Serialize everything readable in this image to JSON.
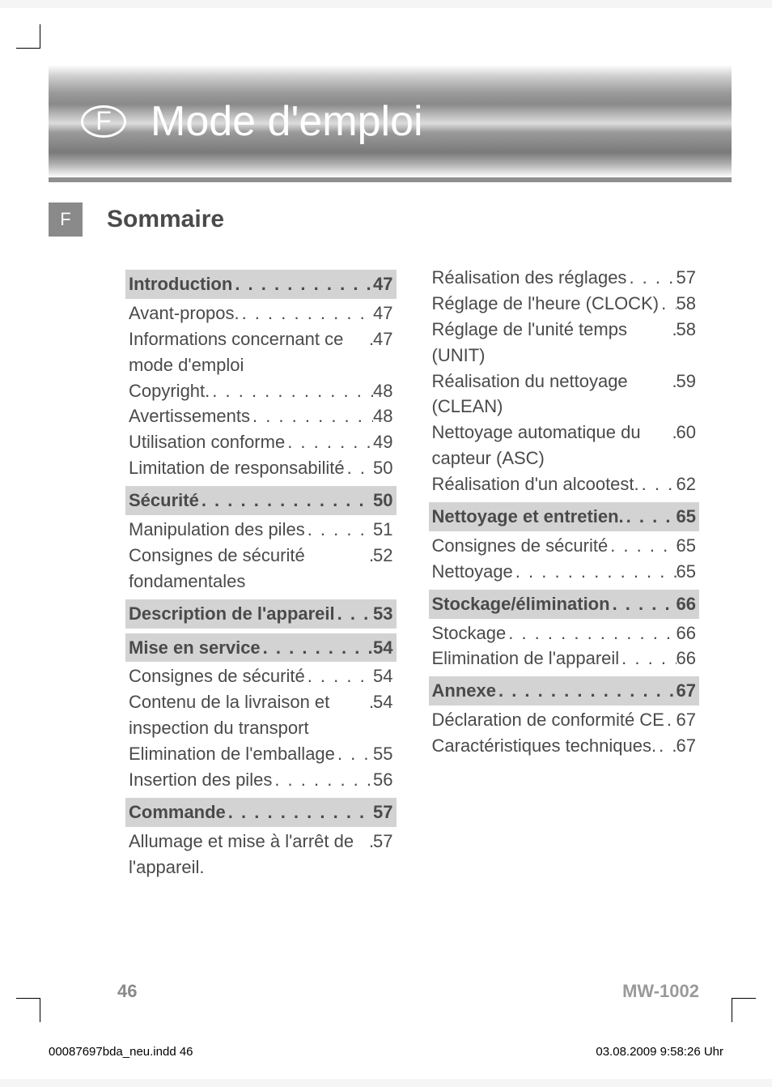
{
  "banner": {
    "lang_letter": "F",
    "title": "Mode d'emploi"
  },
  "section": {
    "lang_letter": "F",
    "title": "Sommaire"
  },
  "toc": {
    "col1": [
      {
        "label": "Introduction",
        "page": "47",
        "header": true
      },
      {
        "label": "Avant-propos.",
        "page": "47",
        "header": false
      },
      {
        "label": "Informations concernant ce mode d'emploi",
        "page": "47",
        "header": false
      },
      {
        "label": "Copyright.",
        "page": "48",
        "header": false
      },
      {
        "label": "Avertissements",
        "page": "48",
        "header": false
      },
      {
        "label": "Utilisation conforme",
        "page": "49",
        "header": false
      },
      {
        "label": "Limitation de responsabilité",
        "page": "50",
        "header": false
      },
      {
        "label": "Sécurité",
        "page": "50",
        "header": true
      },
      {
        "label": "Manipulation des piles",
        "page": "51",
        "header": false
      },
      {
        "label": "Consignes de sécurité fondamentales",
        "page": "52",
        "header": false
      },
      {
        "label": "Description de l'appareil",
        "page": "53",
        "header": true
      },
      {
        "label": "Mise en service",
        "page": "54",
        "header": true
      },
      {
        "label": "Consignes de sécurité",
        "page": "54",
        "header": false
      },
      {
        "label": "Contenu de la livraison et inspection du transport",
        "page": "54",
        "header": false
      },
      {
        "label": "Elimination de l'emballage",
        "page": "55",
        "header": false
      },
      {
        "label": "Insertion des piles",
        "page": "56",
        "header": false
      },
      {
        "label": "Commande",
        "page": "57",
        "header": true
      },
      {
        "label": "Allumage et mise à l'arrêt de l'appareil.",
        "page": "57",
        "header": false
      }
    ],
    "col2": [
      {
        "label": "Réalisation des réglages",
        "page": "57",
        "header": false
      },
      {
        "label": "Réglage de l'heure (CLOCK)",
        "page": "58",
        "header": false
      },
      {
        "label": "Réglage de l'unité temps (UNIT)",
        "page": "58",
        "header": false
      },
      {
        "label": "Réalisation du nettoyage (CLEAN)",
        "page": "59",
        "header": false
      },
      {
        "label": "Nettoyage automatique du capteur (ASC)",
        "page": "60",
        "header": false
      },
      {
        "label": "Réalisation d'un alcootest.",
        "page": "62",
        "header": false
      },
      {
        "label": "Nettoyage et entretien.",
        "page": "65",
        "header": true
      },
      {
        "label": "Consignes de sécurité",
        "page": "65",
        "header": false
      },
      {
        "label": "Nettoyage",
        "page": "65",
        "header": false
      },
      {
        "label": "Stockage/élimination",
        "page": "66",
        "header": true
      },
      {
        "label": "Stockage",
        "page": "66",
        "header": false
      },
      {
        "label": "Elimination de l'appareil",
        "page": "66",
        "header": false
      },
      {
        "label": "Annexe",
        "page": "67",
        "header": true
      },
      {
        "label": "Déclaration de conformité CE",
        "page": "67",
        "header": false
      },
      {
        "label": "Caractéristiques techniques.",
        "page": "67",
        "header": false
      }
    ]
  },
  "footer": {
    "page_number": "46",
    "model": "MW-1002"
  },
  "print": {
    "file": "00087697bda_neu.indd   46",
    "timestamp": "03.08.2009   9:58:26 Uhr"
  }
}
